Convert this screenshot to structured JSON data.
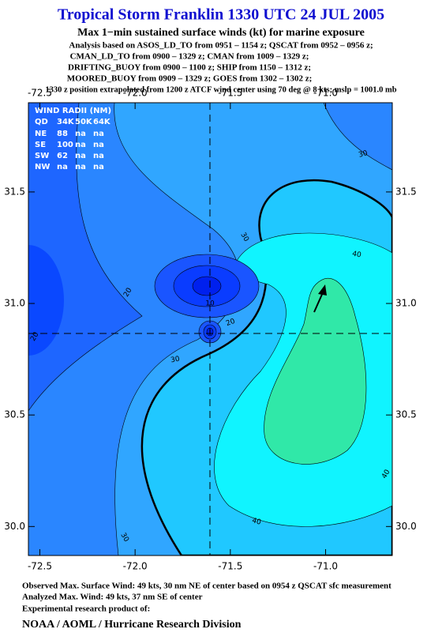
{
  "chart_data": {
    "type": "contour",
    "title": "Tropical Storm Franklin 1330 UTC 24 JUL 2005",
    "subtitle": "Max 1−min sustained surface winds (kt) for marine exposure",
    "notes": [
      "Analysis based on  ASOS_LD_TO from 0951 – 1154 z;  QSCAT from 0952 – 0956 z;",
      "CMAN_LD_TO from 0900 – 1329 z;  CMAN from 1009 – 1329 z;",
      "DRIFTING_BUOY from 0900 – 1100 z;  SHIP from 1150 – 1312 z;",
      "MOORED_BUOY from 0909 – 1329 z;  GOES from 1302 – 1302 z;",
      "1330 z position extrapolated from 1200 z ATCF wind center using 70 deg @ 8 kts; mslp = 1001.0 mb"
    ],
    "xlim": [
      -72.56,
      -70.65
    ],
    "ylim": [
      29.87,
      31.9
    ],
    "xticks": [
      -72.5,
      {
        "value": -72,
        "label": "-72.0"
      },
      -71.5,
      {
        "value": -71,
        "label": "-71.0"
      }
    ],
    "yticks": [
      {
        "value": 30,
        "label": "30.0"
      },
      30.5,
      {
        "value": 31,
        "label": "31.0"
      },
      31.5
    ],
    "contour_labels": [
      30,
      30,
      40,
      20,
      10,
      20,
      30,
      20,
      40,
      40,
      30
    ],
    "wind_radii": {
      "title": "WIND RADII (NM)",
      "header": [
        "QD",
        "34K",
        "50K",
        "64K"
      ],
      "rows": [
        [
          "NE",
          "88",
          "na",
          "na"
        ],
        [
          "SE",
          "100",
          "na",
          "na"
        ],
        [
          "SW",
          "62",
          "na",
          "na"
        ],
        [
          "NW",
          "na",
          "na",
          "na"
        ]
      ]
    },
    "footer": [
      "Observed Max. Surface Wind: 49 kts, 30 nm NE of center based on 0954 z QSCAT sfc measurement",
      "Analyzed Max. Wind: 49 kts, 37 nm SE of center",
      "Experimental research product of:"
    ],
    "credit": "NOAA / AOML / Hurricane Research Division"
  }
}
